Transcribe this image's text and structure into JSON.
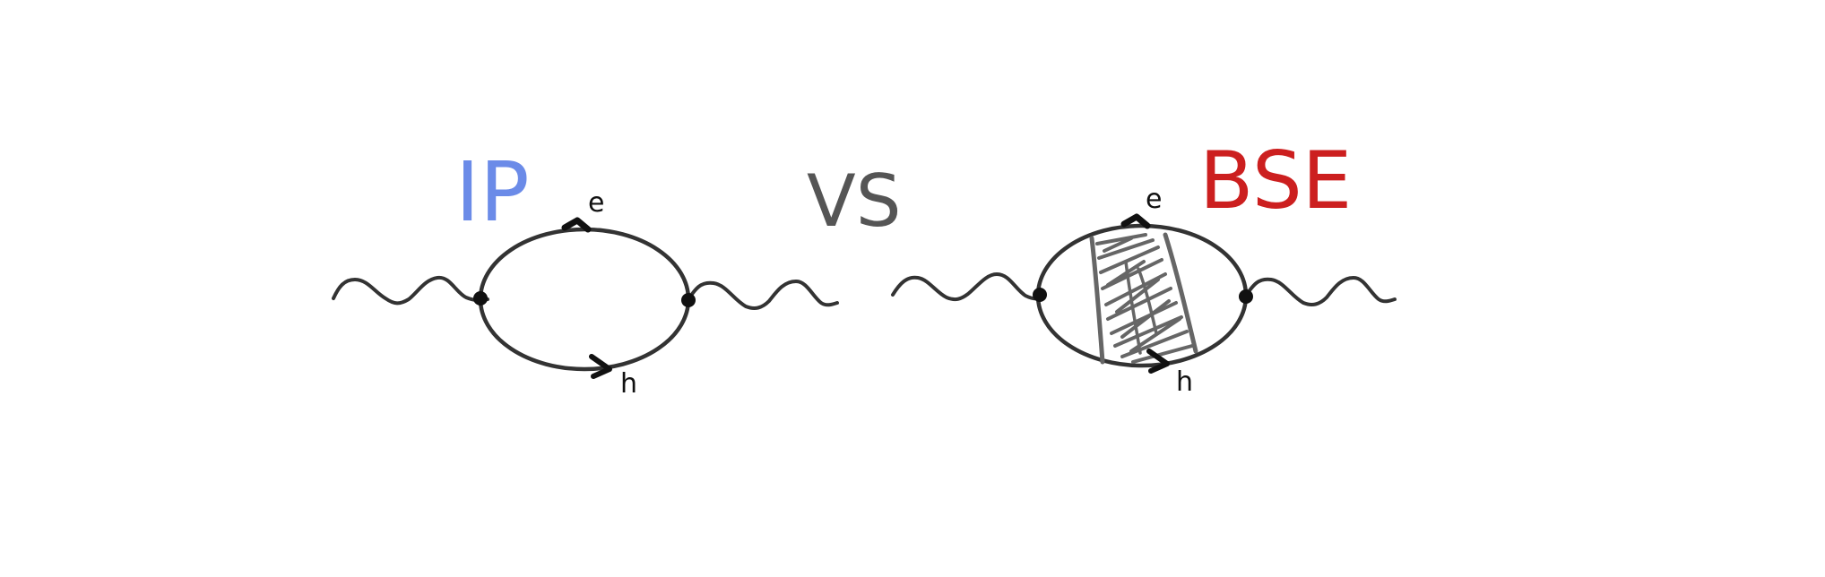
{
  "labels": {
    "left_title": "IP",
    "vs": "VS",
    "right_title": "BSE",
    "electron_left": "e",
    "hole_left": "h",
    "electron_right": "e",
    "hole_right": "h"
  },
  "colors": {
    "ip": "#6b8be8",
    "vs": "#555555",
    "bse": "#cc1f1f",
    "ink": "#333333",
    "marker": "#111111",
    "shading": "#666666",
    "background": "#ffffff"
  }
}
